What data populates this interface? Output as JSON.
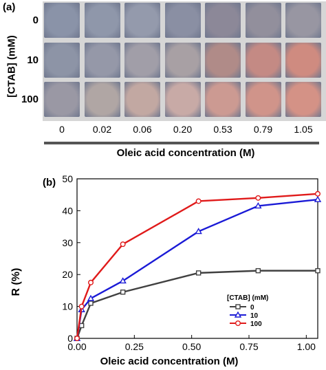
{
  "panel_a": {
    "label": "(a)",
    "y_axis_label": "[CTAB] (mM)",
    "row_labels": [
      "0",
      "10",
      "100"
    ],
    "col_labels": [
      "0",
      "0.02",
      "0.06",
      "0.20",
      "0.53",
      "0.79",
      "1.05"
    ],
    "x_axis_label": "Oleic acid concentration (M)",
    "swatch_colors": [
      [
        "#8a93a8",
        "#8f97aa",
        "#949aac",
        "#8a8fa3",
        "#8c8898",
        "#928f9c",
        "#9896a2"
      ],
      [
        "#8d94a6",
        "#9598a8",
        "#a19ea8",
        "#a8a0a4",
        "#b08b88",
        "#c48a84",
        "#cf8b80"
      ],
      [
        "#9a98a4",
        "#b0a6a4",
        "#c2a8a2",
        "#c8aaa6",
        "#cc9a92",
        "#d0948a",
        "#d49286"
      ]
    ]
  },
  "chart_data": {
    "type": "line",
    "panel_label": "(b)",
    "xlabel": "Oleic acid concentration (M)",
    "ylabel": "R (%)",
    "xlim": [
      0,
      1.05
    ],
    "ylim": [
      0,
      50
    ],
    "xticks": [
      "0.00",
      "0.25",
      "0.50",
      "0.75",
      "1.00"
    ],
    "yticks": [
      "0",
      "10",
      "20",
      "30",
      "40",
      "50"
    ],
    "legend_title": "[CTAB] (mM)",
    "legend_position": "lower-right",
    "series": [
      {
        "name": "0",
        "color": "#404040",
        "marker": "square",
        "x": [
          0,
          0.02,
          0.06,
          0.2,
          0.53,
          0.79,
          1.05
        ],
        "y": [
          0,
          4,
          11,
          14.5,
          20.5,
          21.2,
          21.2
        ]
      },
      {
        "name": "10",
        "color": "#1a1ad6",
        "marker": "triangle",
        "x": [
          0,
          0.02,
          0.06,
          0.2,
          0.53,
          0.79,
          1.05
        ],
        "y": [
          0,
          9,
          12.5,
          18,
          33.5,
          41.5,
          43.5
        ]
      },
      {
        "name": "100",
        "color": "#e01a1a",
        "marker": "circle",
        "x": [
          0,
          0.02,
          0.06,
          0.2,
          0.53,
          0.79,
          1.05
        ],
        "y": [
          0,
          10,
          17.5,
          29.5,
          43,
          44,
          45.3
        ]
      }
    ]
  }
}
